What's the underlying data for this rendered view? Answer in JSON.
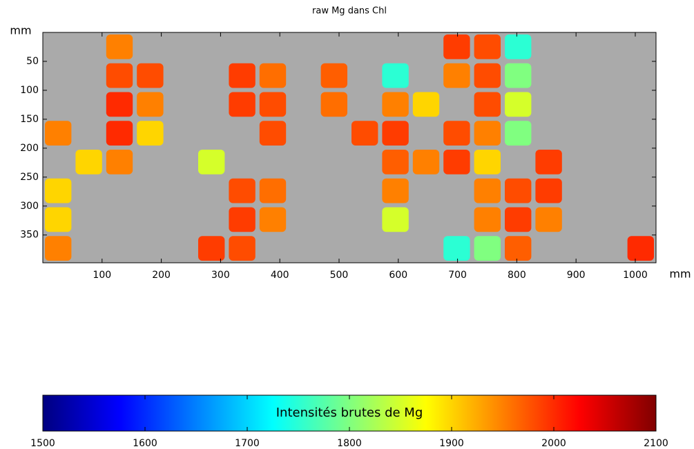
{
  "chart_data": {
    "type": "heatmap",
    "title": "raw Mg dans Chl",
    "x_unit": "mm",
    "y_unit": "mm",
    "xlim": [
      0,
      1035
    ],
    "ylim": [
      0,
      398
    ],
    "y_inverted": true,
    "xticks": [
      100,
      200,
      300,
      400,
      500,
      600,
      700,
      800,
      900,
      1000
    ],
    "yticks": [
      50,
      100,
      150,
      200,
      250,
      300,
      350
    ],
    "background": "#aaaaaa",
    "z": [
      [
        null,
        null,
        1950,
        null,
        null,
        null,
        null,
        null,
        null,
        null,
        null,
        null,
        null,
        1990,
        1980,
        1750,
        null,
        null,
        null,
        null
      ],
      [
        null,
        null,
        1980,
        1980,
        null,
        null,
        1990,
        1960,
        null,
        1970,
        null,
        1750,
        null,
        1950,
        1980,
        1800,
        null,
        null,
        null,
        null
      ],
      [
        null,
        null,
        2000,
        1950,
        null,
        null,
        1990,
        1980,
        null,
        1960,
        null,
        1950,
        1900,
        null,
        1980,
        1850,
        null,
        null,
        null,
        null
      ],
      [
        1950,
        null,
        2000,
        1900,
        null,
        null,
        null,
        1980,
        null,
        null,
        1980,
        1990,
        null,
        1980,
        1950,
        1800,
        null,
        null,
        null,
        null
      ],
      [
        null,
        1900,
        1950,
        null,
        null,
        1850,
        null,
        null,
        null,
        null,
        null,
        1970,
        1950,
        1990,
        1900,
        null,
        1990,
        null,
        null,
        null
      ],
      [
        1900,
        null,
        null,
        null,
        null,
        null,
        1980,
        1960,
        null,
        null,
        null,
        1950,
        null,
        null,
        1950,
        1980,
        1990,
        null,
        null,
        null
      ],
      [
        1900,
        null,
        null,
        null,
        null,
        null,
        1990,
        1950,
        null,
        null,
        null,
        1850,
        null,
        null,
        1950,
        1990,
        1950,
        null,
        null,
        null
      ],
      [
        1950,
        null,
        null,
        null,
        null,
        1990,
        1980,
        null,
        null,
        null,
        null,
        null,
        null,
        1750,
        1800,
        1970,
        null,
        null,
        null,
        2000
      ]
    ],
    "colorbar": {
      "label": "Intensités brutes de Mg",
      "colormap": "jet",
      "clim": [
        1500,
        2100
      ],
      "ticks": [
        1500,
        1600,
        1700,
        1800,
        1900,
        2000,
        2100
      ]
    }
  }
}
